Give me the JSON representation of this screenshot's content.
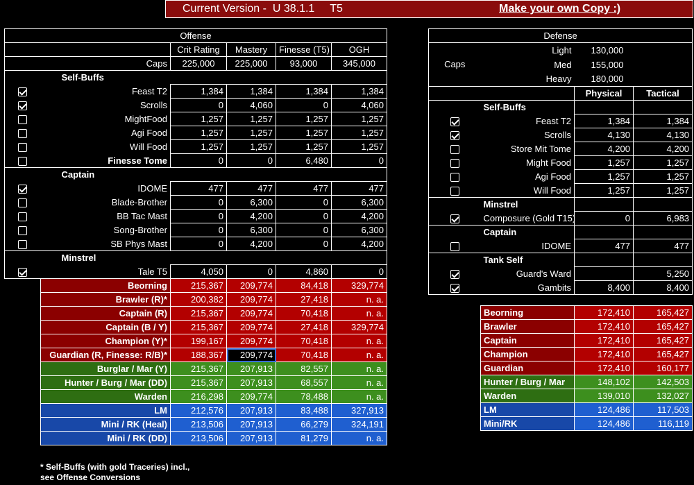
{
  "banner": {
    "version": "Current Version -  U 38.1.1     T5",
    "copy_link": "Make your own Copy :)"
  },
  "offense": {
    "title": "Offense",
    "columns": [
      "Crit Rating",
      "Mastery",
      "Finesse (T5)",
      "OGH"
    ],
    "caps_label": "Caps",
    "caps": [
      "225,000",
      "225,000",
      "93,000",
      "345,000"
    ],
    "self_buffs_label": "Self-Buffs",
    "self_buffs": [
      {
        "label": "Feast T2",
        "checked": true,
        "values": [
          "1,384",
          "1,384",
          "1,384",
          "1,384"
        ]
      },
      {
        "label": "Scrolls",
        "checked": true,
        "values": [
          "0",
          "4,060",
          "0",
          "4,060"
        ]
      },
      {
        "label": "MightFood",
        "checked": false,
        "values": [
          "1,257",
          "1,257",
          "1,257",
          "1,257"
        ]
      },
      {
        "label": "Agi Food",
        "checked": false,
        "values": [
          "1,257",
          "1,257",
          "1,257",
          "1,257"
        ]
      },
      {
        "label": "Will Food",
        "checked": false,
        "values": [
          "1,257",
          "1,257",
          "1,257",
          "1,257"
        ]
      },
      {
        "label": "Finesse Tome",
        "checked": false,
        "values": [
          "0",
          "0",
          "6,480",
          "0"
        ]
      }
    ],
    "captain_label": "Captain",
    "captain": [
      {
        "label": "IDOME",
        "checked": true,
        "values": [
          "477",
          "477",
          "477",
          "477"
        ]
      },
      {
        "label": "Blade-Brother",
        "checked": false,
        "values": [
          "0",
          "6,300",
          "0",
          "6,300"
        ]
      },
      {
        "label": "BB Tac Mast",
        "checked": false,
        "values": [
          "0",
          "4,200",
          "0",
          "4,200"
        ]
      },
      {
        "label": "Song-Brother",
        "checked": false,
        "values": [
          "0",
          "6,300",
          "0",
          "6,300"
        ]
      },
      {
        "label": "SB Phys Mast",
        "checked": false,
        "values": [
          "0",
          "4,200",
          "0",
          "4,200"
        ]
      }
    ],
    "minstrel_label": "Minstrel",
    "minstrel": [
      {
        "label": "Tale T5",
        "checked": true,
        "values": [
          "4,050",
          "0",
          "4,860",
          "0"
        ]
      }
    ],
    "classes": [
      {
        "label": "Beorning",
        "group": "red",
        "values": [
          "215,367",
          "209,774",
          "84,418",
          "329,774"
        ]
      },
      {
        "label": "Brawler (R)*",
        "group": "red",
        "values": [
          "200,382",
          "209,774",
          "27,418",
          "n. a."
        ]
      },
      {
        "label": "Captain (R)",
        "group": "red",
        "values": [
          "215,367",
          "209,774",
          "70,418",
          "n. a."
        ]
      },
      {
        "label": "Captain (B / Y)",
        "group": "red",
        "values": [
          "215,367",
          "209,774",
          "27,418",
          "329,774"
        ]
      },
      {
        "label": "Champion (Y)*",
        "group": "red",
        "values": [
          "199,167",
          "209,774",
          "70,418",
          "n. a."
        ]
      },
      {
        "label": "Guardian (R, Finesse: R/B)*",
        "group": "red",
        "values": [
          "188,367",
          "209,774",
          "70,418",
          "n. a."
        ]
      },
      {
        "label": "Burglar / Mar (Y)",
        "group": "grn",
        "values": [
          "215,367",
          "207,913",
          "82,557",
          "n. a."
        ]
      },
      {
        "label": "Hunter / Burg / Mar (DD)",
        "group": "grn",
        "values": [
          "215,367",
          "207,913",
          "68,557",
          "n. a."
        ]
      },
      {
        "label": "Warden",
        "group": "grn",
        "values": [
          "216,298",
          "209,774",
          "78,488",
          "n. a."
        ]
      },
      {
        "label": "LM",
        "group": "blu",
        "values": [
          "212,576",
          "207,913",
          "83,488",
          "327,913"
        ]
      },
      {
        "label": "Mini / RK (Heal)",
        "group": "blu",
        "values": [
          "213,506",
          "207,913",
          "66,279",
          "324,191"
        ]
      },
      {
        "label": "Mini / RK (DD)",
        "group": "blu",
        "values": [
          "213,506",
          "207,913",
          "81,279",
          "n. a."
        ]
      }
    ]
  },
  "defense": {
    "title": "Defense",
    "caps_label": "Caps",
    "caps": [
      {
        "label": "Light",
        "value": "130,000"
      },
      {
        "label": "Med",
        "value": "155,000"
      },
      {
        "label": "Heavy",
        "value": "180,000"
      }
    ],
    "columns": [
      "Physical",
      "Tactical"
    ],
    "self_buffs_label": "Self-Buffs",
    "self_buffs": [
      {
        "label": "Feast T2",
        "checked": true,
        "values": [
          "1,384",
          "1,384"
        ]
      },
      {
        "label": "Scrolls",
        "checked": true,
        "values": [
          "4,130",
          "4,130"
        ]
      },
      {
        "label": "Store Mit Tome",
        "checked": false,
        "values": [
          "4,200",
          "4,200"
        ]
      },
      {
        "label": "Might Food",
        "checked": false,
        "values": [
          "1,257",
          "1,257"
        ]
      },
      {
        "label": "Agi Food",
        "checked": false,
        "values": [
          "1,257",
          "1,257"
        ]
      },
      {
        "label": "Will Food",
        "checked": false,
        "values": [
          "1,257",
          "1,257"
        ]
      }
    ],
    "minstrel_label": "Minstrel",
    "minstrel": [
      {
        "label": "Composure (Gold T15)",
        "checked": true,
        "values": [
          "0",
          "6,983"
        ]
      }
    ],
    "captain_label": "Captain",
    "captain": [
      {
        "label": "IDOME",
        "checked": false,
        "values": [
          "477",
          "477"
        ]
      }
    ],
    "tank_label": "Tank Self",
    "tank": [
      {
        "label": "Guard's Ward",
        "checked": true,
        "values": [
          "",
          "5,250"
        ]
      },
      {
        "label": "Gambits",
        "checked": true,
        "values": [
          "8,400",
          "8,400"
        ]
      }
    ],
    "classes": [
      {
        "label": "Beorning",
        "group": "red",
        "values": [
          "172,410",
          "165,427"
        ]
      },
      {
        "label": "Brawler",
        "group": "red",
        "values": [
          "172,410",
          "165,427"
        ]
      },
      {
        "label": "Captain",
        "group": "red",
        "values": [
          "172,410",
          "165,427"
        ]
      },
      {
        "label": "Champion",
        "group": "red",
        "values": [
          "172,410",
          "165,427"
        ]
      },
      {
        "label": "Guardian",
        "group": "red",
        "values": [
          "172,410",
          "160,177"
        ]
      },
      {
        "label": "Hunter / Burg / Mar",
        "group": "grn",
        "values": [
          "148,102",
          "142,503"
        ]
      },
      {
        "label": "Warden",
        "group": "grn",
        "values": [
          "139,010",
          "132,027"
        ]
      },
      {
        "label": "LM",
        "group": "blu",
        "values": [
          "124,486",
          "117,503"
        ]
      },
      {
        "label": "Mini/RK",
        "group": "blu",
        "values": [
          "124,486",
          "116,119"
        ]
      }
    ]
  },
  "footnote": [
    "* Self-Buffs (with gold Traceries) incl.,",
    "see Offense Conversions"
  ]
}
